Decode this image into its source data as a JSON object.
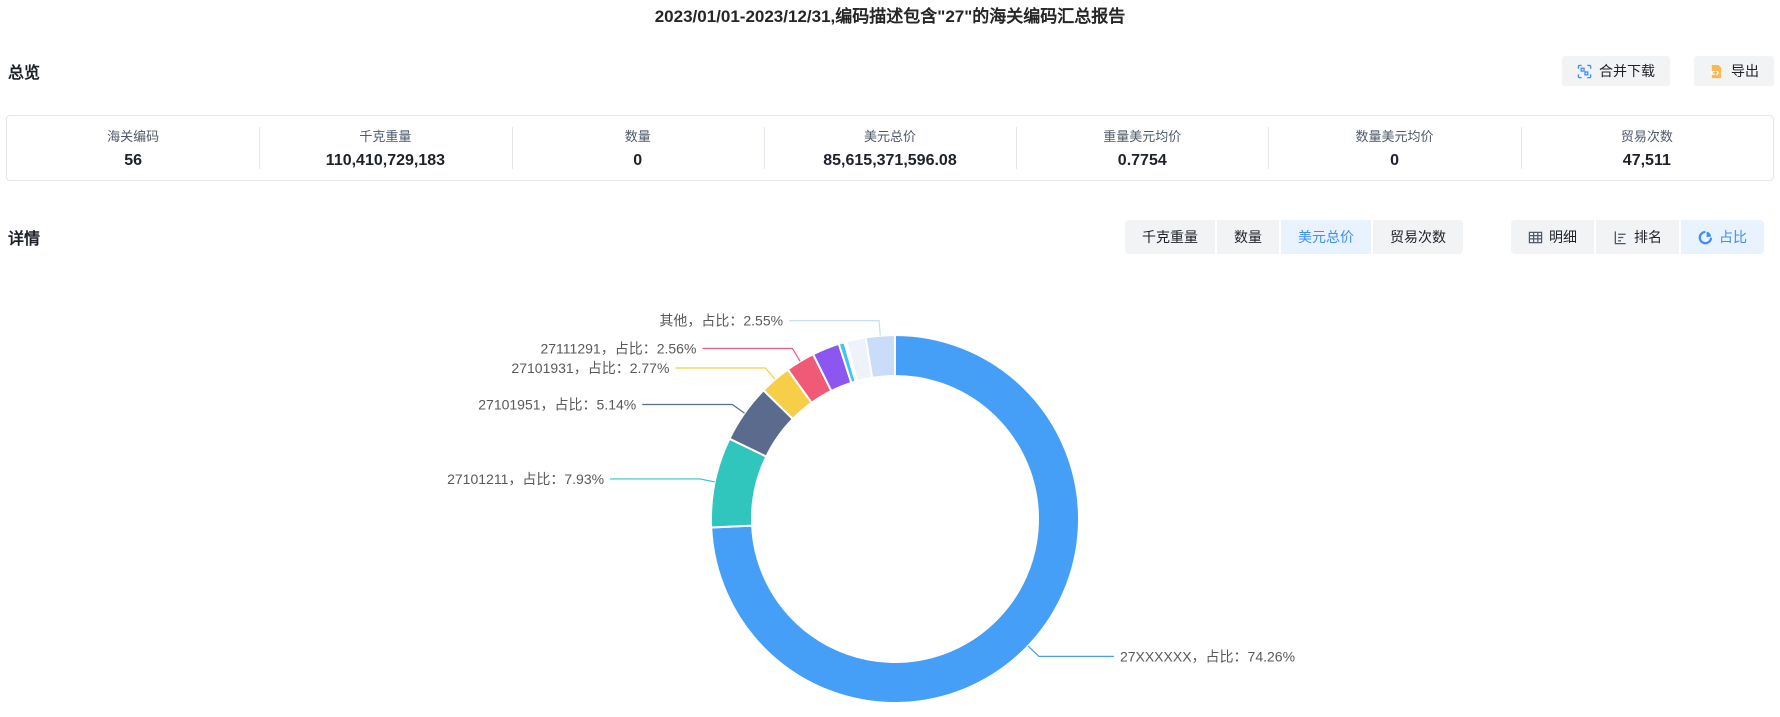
{
  "title": "2023/01/01-2023/12/31,编码描述包含\"27\"的海关编码汇总报告",
  "overview": {
    "heading": "总览",
    "actions": [
      {
        "label": "合并下载",
        "icon": "merge-download-icon",
        "icon_color": "#3e8ef7"
      },
      {
        "label": "导出",
        "icon": "export-icon",
        "icon_color": "#ffb84d"
      }
    ],
    "stats": [
      {
        "label": "海关编码",
        "value": "56"
      },
      {
        "label": "千克重量",
        "value": "110,410,729,183"
      },
      {
        "label": "数量",
        "value": "0"
      },
      {
        "label": "美元总价",
        "value": "85,615,371,596.08"
      },
      {
        "label": "重量美元均价",
        "value": "0.7754"
      },
      {
        "label": "数量美元均价",
        "value": "0"
      },
      {
        "label": "贸易次数",
        "value": "47,511"
      }
    ]
  },
  "detail": {
    "heading": "详情",
    "metric_tabs": [
      {
        "label": "千克重量",
        "active": false
      },
      {
        "label": "数量",
        "active": false
      },
      {
        "label": "美元总价",
        "active": true
      },
      {
        "label": "贸易次数",
        "active": false
      }
    ],
    "view_tabs": [
      {
        "label": "明细",
        "icon": "table-icon",
        "active": false
      },
      {
        "label": "排名",
        "icon": "ranking-icon",
        "active": false
      },
      {
        "label": "占比",
        "icon": "pie-icon",
        "active": true
      }
    ],
    "active_color": "#3e8ef7",
    "active_bg": "#e8f3ff"
  },
  "chart_data": {
    "type": "pie",
    "subtype": "donut",
    "title": "",
    "legend": "none",
    "start_angle": 90,
    "clockwise": true,
    "label_format": "{name}，占比：{pct}%",
    "label_color": "#595959",
    "slices": [
      {
        "name": "27XXXXXX",
        "pct": 74.26,
        "color": "#459ff6",
        "labeled": true
      },
      {
        "name": "27101211",
        "pct": 7.93,
        "color": "#30c6be",
        "labeled": true
      },
      {
        "name": "27101951",
        "pct": 5.14,
        "color": "#5a6b8e",
        "labeled": true
      },
      {
        "name": "27101931",
        "pct": 2.77,
        "color": "#f7ce47",
        "labeled": true
      },
      {
        "name": "27111291",
        "pct": 2.56,
        "color": "#f05a77",
        "labeled": true
      },
      {
        "name": "",
        "pct": 2.4,
        "color": "#8b57f0",
        "labeled": false
      },
      {
        "name": "",
        "pct": 0.5,
        "color": "#41c3ef",
        "labeled": false
      },
      {
        "name": "",
        "pct": 0.18,
        "color": "#f7a64a",
        "labeled": false
      },
      {
        "name": "",
        "pct": 1.71,
        "color": "#edf2fb",
        "labeled": false
      },
      {
        "name": "其他",
        "pct": 2.55,
        "color": "#c9ddf8",
        "labeled": true
      }
    ]
  }
}
